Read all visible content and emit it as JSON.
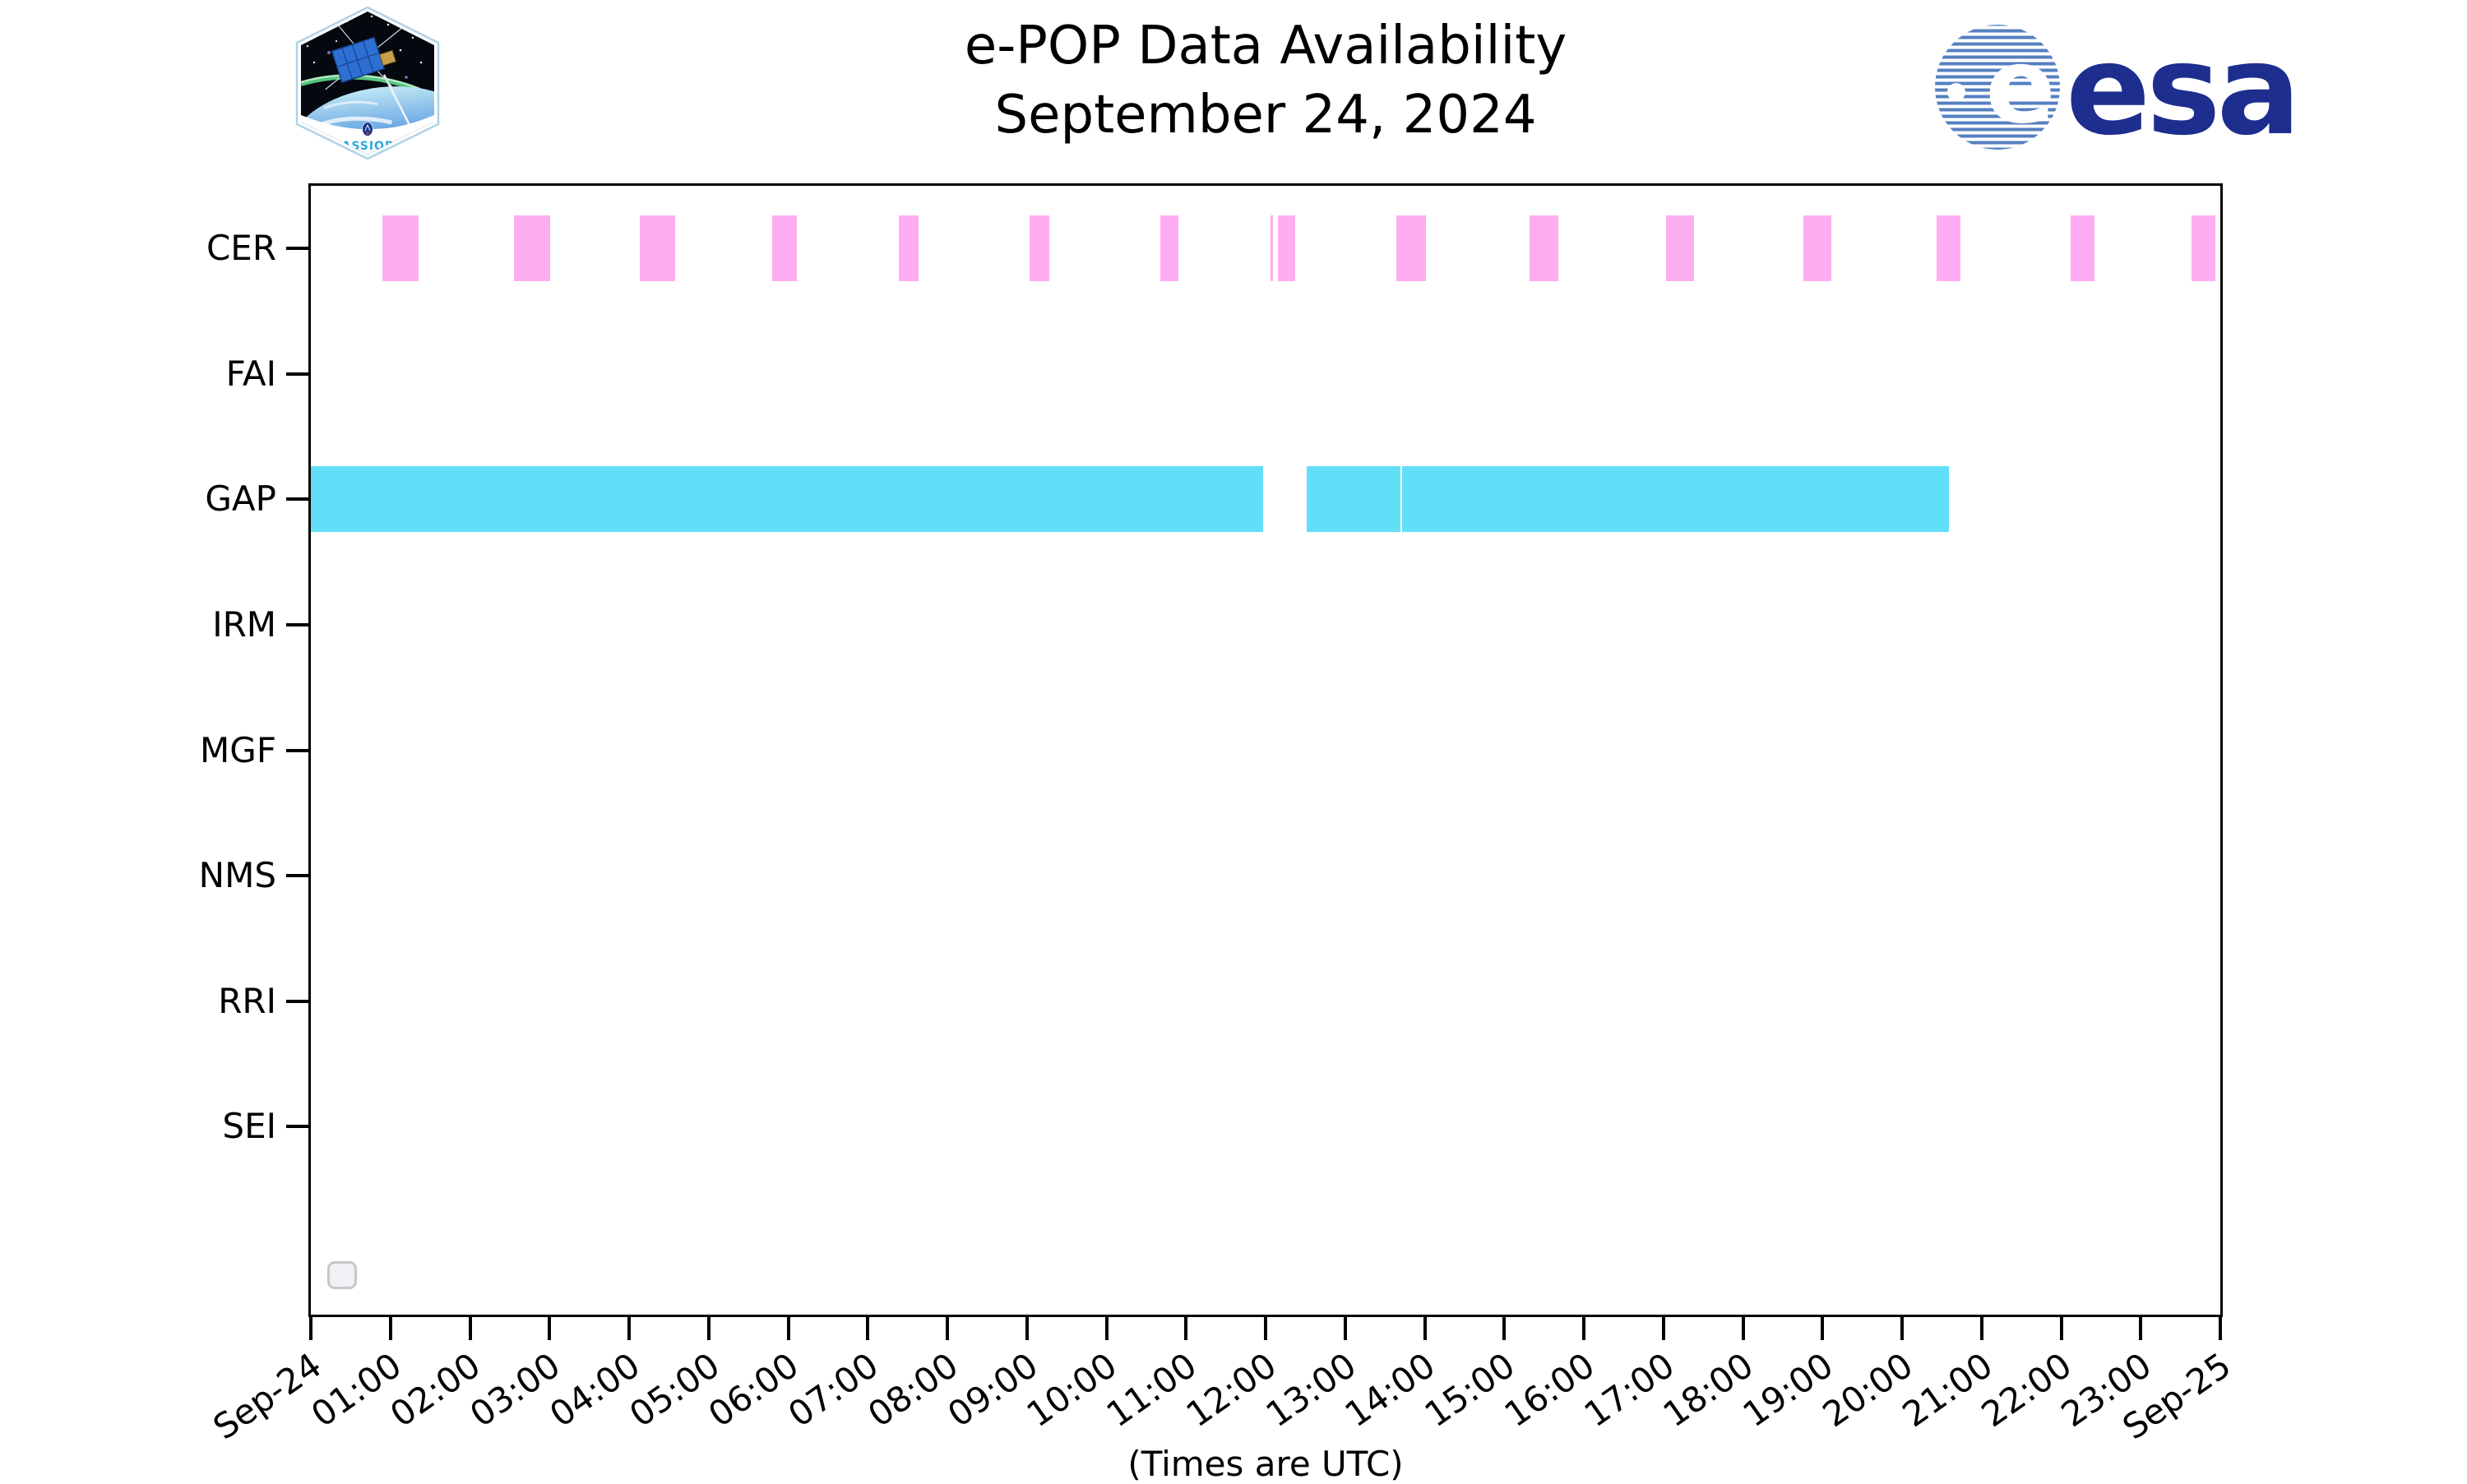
{
  "header": {
    "title_line1": "e-POP Data Availability",
    "title_line2": "September 24, 2024",
    "cassiope_label": "CASSIOPE",
    "esa_wordmark": "esa"
  },
  "colors": {
    "cer_bar": "#ffadf2",
    "gap_bar": "#62dff8",
    "esa_navy": "#1d2e8f",
    "esa_stripe_blue": "#5580c0",
    "axis": "#000000"
  },
  "icons": {
    "mission_patch": "cassiope-mission-patch",
    "agency_logo": "esa-sphere-icon"
  },
  "checkbox": {
    "checked": false
  },
  "chart_data": {
    "type": "bar",
    "subtype": "broken-horizontal-bar-timeline",
    "title": "e-POP Data Availability September 24, 2024",
    "xlabel": "(Times are UTC)",
    "ylabel": "",
    "grid": false,
    "legend": "none",
    "xlim": [
      0,
      24
    ],
    "rows": [
      "CER",
      "FAI",
      "GAP",
      "IRM",
      "MGF",
      "NMS",
      "RRI",
      "SEI",
      ""
    ],
    "x_ticks": [
      {
        "hour": 0,
        "label": "Sep-24"
      },
      {
        "hour": 1,
        "label": "01:00"
      },
      {
        "hour": 2,
        "label": "02:00"
      },
      {
        "hour": 3,
        "label": "03:00"
      },
      {
        "hour": 4,
        "label": "04:00"
      },
      {
        "hour": 5,
        "label": "05:00"
      },
      {
        "hour": 6,
        "label": "06:00"
      },
      {
        "hour": 7,
        "label": "07:00"
      },
      {
        "hour": 8,
        "label": "08:00"
      },
      {
        "hour": 9,
        "label": "09:00"
      },
      {
        "hour": 10,
        "label": "10:00"
      },
      {
        "hour": 11,
        "label": "11:00"
      },
      {
        "hour": 12,
        "label": "12:00"
      },
      {
        "hour": 13,
        "label": "13:00"
      },
      {
        "hour": 14,
        "label": "14:00"
      },
      {
        "hour": 15,
        "label": "15:00"
      },
      {
        "hour": 16,
        "label": "16:00"
      },
      {
        "hour": 17,
        "label": "17:00"
      },
      {
        "hour": 18,
        "label": "18:00"
      },
      {
        "hour": 19,
        "label": "19:00"
      },
      {
        "hour": 20,
        "label": "20:00"
      },
      {
        "hour": 21,
        "label": "21:00"
      },
      {
        "hour": 22,
        "label": "22:00"
      },
      {
        "hour": 23,
        "label": "23:00"
      },
      {
        "hour": 24,
        "label": "Sep-25"
      }
    ],
    "series": [
      {
        "row": "CER",
        "color": "#ffadf2",
        "intervals_hours": [
          [
            0.9,
            1.35
          ],
          [
            2.55,
            3.01
          ],
          [
            4.13,
            4.58
          ],
          [
            5.8,
            6.11
          ],
          [
            7.39,
            7.64
          ],
          [
            9.03,
            9.28
          ],
          [
            10.68,
            10.9
          ],
          [
            12.06,
            12.09
          ],
          [
            12.16,
            12.37
          ],
          [
            13.64,
            14.02
          ],
          [
            15.32,
            15.68
          ],
          [
            17.03,
            17.39
          ],
          [
            18.76,
            19.11
          ],
          [
            20.43,
            20.73
          ],
          [
            22.12,
            22.42
          ],
          [
            23.64,
            23.94
          ]
        ]
      },
      {
        "row": "GAP",
        "color": "#62dff8",
        "intervals_hours": [
          [
            0.0,
            11.97
          ],
          [
            12.52,
            13.7
          ],
          [
            13.72,
            20.59
          ]
        ]
      }
    ]
  }
}
